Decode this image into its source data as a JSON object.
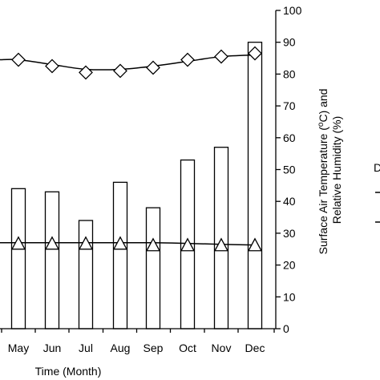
{
  "chart_data": {
    "type": "bar",
    "categories": [
      "May",
      "Jun",
      "Jul",
      "Aug",
      "Sep",
      "Oct",
      "Nov",
      "Dec"
    ],
    "series": [
      {
        "type": "bar",
        "values": [
          44,
          43,
          34,
          46,
          38,
          53,
          57,
          90
        ]
      },
      {
        "type": "line",
        "marker": "diamond",
        "values": [
          84.5,
          82.5,
          80.5,
          81,
          82,
          84.5,
          85.5,
          86.5
        ],
        "trend": [
          84.5,
          83,
          81.5,
          81.5,
          82.5,
          84,
          85.5,
          86
        ]
      },
      {
        "type": "line",
        "marker": "triangle",
        "values": [
          26.5,
          26.5,
          26.5,
          26.5,
          26,
          26,
          26,
          26
        ],
        "trend": [
          27,
          27,
          27,
          27,
          27,
          26.8,
          26.5,
          26.3
        ]
      }
    ],
    "xlabel": "Time (Month)",
    "ylabel_right": "Surface Air Temperature (oC) and",
    "ylabel_right_sup": "o",
    "ylabel_right_line1_pre": "Surface Air Temperature (",
    "ylabel_right_line1_post": "C) and",
    "ylabel_right_line2": "Relative Humidity (%)",
    "yticks": [
      0,
      10,
      20,
      30,
      40,
      50,
      60,
      70,
      80,
      90,
      100
    ],
    "ylim": [
      0,
      100
    ],
    "colors": {
      "bar_fill": "#ffffff",
      "stroke": "#000000"
    },
    "legend_fragment": [
      "D"
    ]
  }
}
